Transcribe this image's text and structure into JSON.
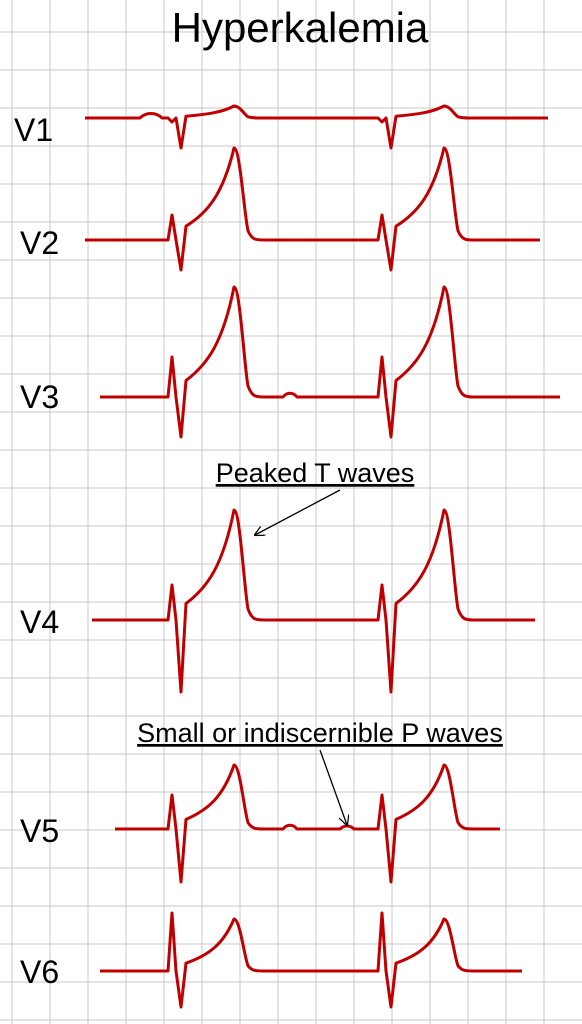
{
  "title": "Hyperkalemia",
  "leads": [
    "V1",
    "V2",
    "V3",
    "V4",
    "V5",
    "V6"
  ],
  "annotations": [
    "Peaked T waves",
    "Small or indiscernible P waves"
  ]
}
